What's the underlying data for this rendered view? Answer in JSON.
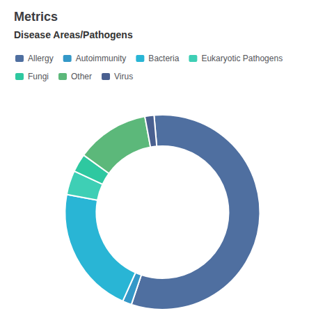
{
  "chart_data": {
    "type": "pie",
    "title": "Metrics",
    "subtitle": "Disease Areas/Pathogens",
    "categories": [
      "Allergy",
      "Autoimmunity",
      "Bacteria",
      "Eukaryotic Pathogens",
      "Fungi",
      "Other",
      "Virus"
    ],
    "values": [
      56,
      1.5,
      21,
      4,
      3,
      12,
      1.5
    ],
    "colors": [
      "#4f6fa0",
      "#3498c8",
      "#29b5d5",
      "#3ecfb5",
      "#2ec8a0",
      "#5cb87a",
      "#4a6090"
    ],
    "legend": "upper left"
  }
}
